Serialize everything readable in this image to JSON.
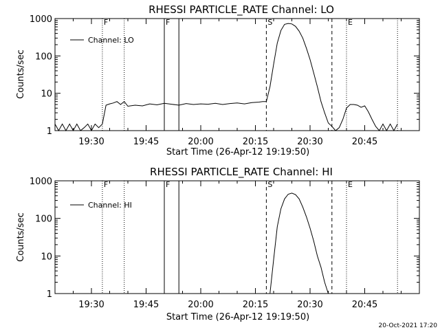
{
  "footer": {
    "timestamp": "20-Oct-2021 17:20"
  },
  "chart_data": [
    {
      "type": "line",
      "title": "RHESSI PARTICLE_RATE Channel: LO",
      "xlabel": "Start Time (26-Apr-12 19:19:50)",
      "ylabel": "Counts/sec",
      "yscale": "log",
      "ylim": [
        1,
        1000
      ],
      "xlim": [
        "19:20",
        "21:00"
      ],
      "xticks": [
        "19:30",
        "19:45",
        "20:00",
        "20:15",
        "20:30",
        "20:45"
      ],
      "yticks": [
        "1",
        "10",
        "100",
        "1000"
      ],
      "legend": {
        "label": "Channel: LO",
        "position": "top-left"
      },
      "markers": [
        {
          "label": "F",
          "start": "19:33",
          "end": "19:39"
        },
        {
          "label": "F",
          "start": "19:50",
          "end": "19:54"
        },
        {
          "label": "S",
          "start": "20:18",
          "end": "20:36"
        },
        {
          "label": "E",
          "start": "20:40",
          "end": "20:54"
        }
      ],
      "series": [
        {
          "name": "Channel: LO",
          "x": [
            "19:20",
            "19:21",
            "19:22",
            "19:23",
            "19:24",
            "19:25",
            "19:26",
            "19:27",
            "19:28",
            "19:29",
            "19:30",
            "19:31",
            "19:32",
            "19:33",
            "19:34",
            "19:35",
            "19:36",
            "19:37",
            "19:38",
            "19:39",
            "19:40",
            "19:42",
            "19:44",
            "19:46",
            "19:48",
            "19:50",
            "19:52",
            "19:54",
            "19:56",
            "19:58",
            "20:00",
            "20:02",
            "20:04",
            "20:06",
            "20:08",
            "20:10",
            "20:12",
            "20:14",
            "20:16",
            "20:17",
            "20:18",
            "20:19",
            "20:20",
            "20:21",
            "20:22",
            "20:23",
            "20:24",
            "20:25",
            "20:26",
            "20:27",
            "20:28",
            "20:29",
            "20:30",
            "20:31",
            "20:32",
            "20:33",
            "20:34",
            "20:35",
            "20:36",
            "20:37",
            "20:38",
            "20:39",
            "20:40",
            "20:41",
            "20:42",
            "20:43",
            "20:44",
            "20:45",
            "20:46",
            "20:47",
            "20:48",
            "20:49",
            "20:50",
            "20:51",
            "20:52",
            "20:53",
            "20:54"
          ],
          "y": [
            1.5,
            1,
            1.5,
            1,
            1.5,
            1,
            1.5,
            1,
            1.2,
            1.5,
            1,
            1.5,
            1.2,
            1.5,
            4.8,
            5.2,
            5.5,
            6,
            5,
            6,
            4.5,
            4.8,
            4.6,
            5.2,
            4.9,
            5.4,
            5.1,
            4.8,
            5.3,
            5.0,
            5.2,
            5.1,
            5.4,
            5.0,
            5.3,
            5.5,
            5.2,
            5.6,
            5.8,
            6,
            6,
            15,
            60,
            220,
            480,
            700,
            740,
            720,
            620,
            460,
            300,
            160,
            80,
            35,
            15,
            6,
            3,
            1.6,
            1.3,
            1,
            1.2,
            2,
            4,
            5,
            5,
            4.8,
            4.2,
            4.6,
            3.2,
            2,
            1.3,
            1,
            1.5,
            1,
            1.5,
            1,
            1.5
          ]
        }
      ]
    },
    {
      "type": "line",
      "title": "RHESSI PARTICLE_RATE Channel: HI",
      "xlabel": "Start Time (26-Apr-12 19:19:50)",
      "ylabel": "Counts/sec",
      "yscale": "log",
      "ylim": [
        1,
        1000
      ],
      "xlim": [
        "19:20",
        "21:00"
      ],
      "xticks": [
        "19:30",
        "19:45",
        "20:00",
        "20:15",
        "20:30",
        "20:45"
      ],
      "yticks": [
        "1",
        "10",
        "100",
        "1000"
      ],
      "legend": {
        "label": "Channel: HI",
        "position": "top-left"
      },
      "markers": [
        {
          "label": "F",
          "start": "19:33",
          "end": "19:39"
        },
        {
          "label": "F",
          "start": "19:50",
          "end": "19:54"
        },
        {
          "label": "S",
          "start": "20:18",
          "end": "20:36"
        },
        {
          "label": "E",
          "start": "20:40",
          "end": "20:54"
        }
      ],
      "series": [
        {
          "name": "Channel: HI",
          "x": [
            "20:19",
            "20:20",
            "20:21",
            "20:22",
            "20:23",
            "20:24",
            "20:25",
            "20:26",
            "20:27",
            "20:28",
            "20:29",
            "20:30",
            "20:31",
            "20:32",
            "20:33",
            "20:34",
            "20:35"
          ],
          "y": [
            1,
            8,
            60,
            180,
            330,
            440,
            470,
            430,
            330,
            200,
            110,
            55,
            25,
            10,
            5,
            2,
            1
          ]
        }
      ]
    }
  ]
}
